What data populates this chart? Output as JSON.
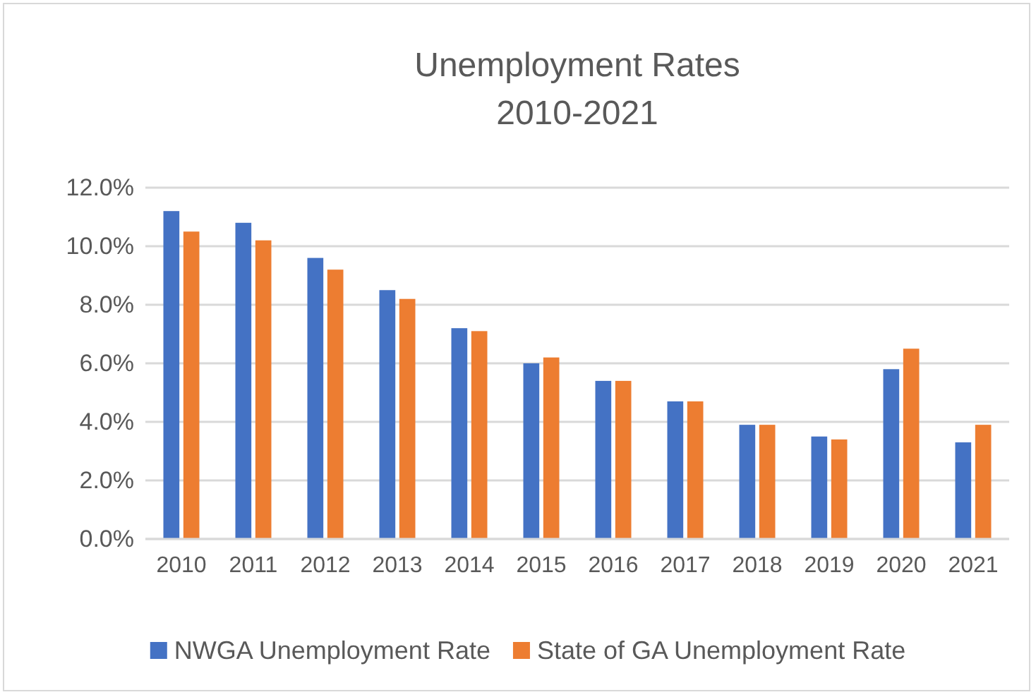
{
  "chart_data": {
    "type": "bar",
    "title": "Unemployment Rates",
    "subtitle": "2010-2021",
    "categories": [
      "2010",
      "2011",
      "2012",
      "2013",
      "2014",
      "2015",
      "2016",
      "2017",
      "2018",
      "2019",
      "2020",
      "2021"
    ],
    "series": [
      {
        "name": "NWGA Unemployment Rate",
        "color": "#4472c4",
        "values": [
          11.2,
          10.8,
          9.6,
          8.5,
          7.2,
          6.0,
          5.4,
          4.7,
          3.9,
          3.5,
          5.8,
          3.3
        ]
      },
      {
        "name": "State of GA Unemployment Rate",
        "color": "#ed7d31",
        "values": [
          10.5,
          10.2,
          9.2,
          8.2,
          7.1,
          6.2,
          5.4,
          4.7,
          3.9,
          3.4,
          6.5,
          3.9
        ]
      }
    ],
    "ylim": [
      0,
      12
    ],
    "yticks": [
      {
        "value": 0,
        "label": "0.0%"
      },
      {
        "value": 2,
        "label": "2.0%"
      },
      {
        "value": 4,
        "label": "4.0%"
      },
      {
        "value": 6,
        "label": "6.0%"
      },
      {
        "value": 8,
        "label": "8.0%"
      },
      {
        "value": 10,
        "label": "10.0%"
      },
      {
        "value": 12,
        "label": "12.0%"
      }
    ],
    "grid": "y",
    "legend": "bottom"
  }
}
